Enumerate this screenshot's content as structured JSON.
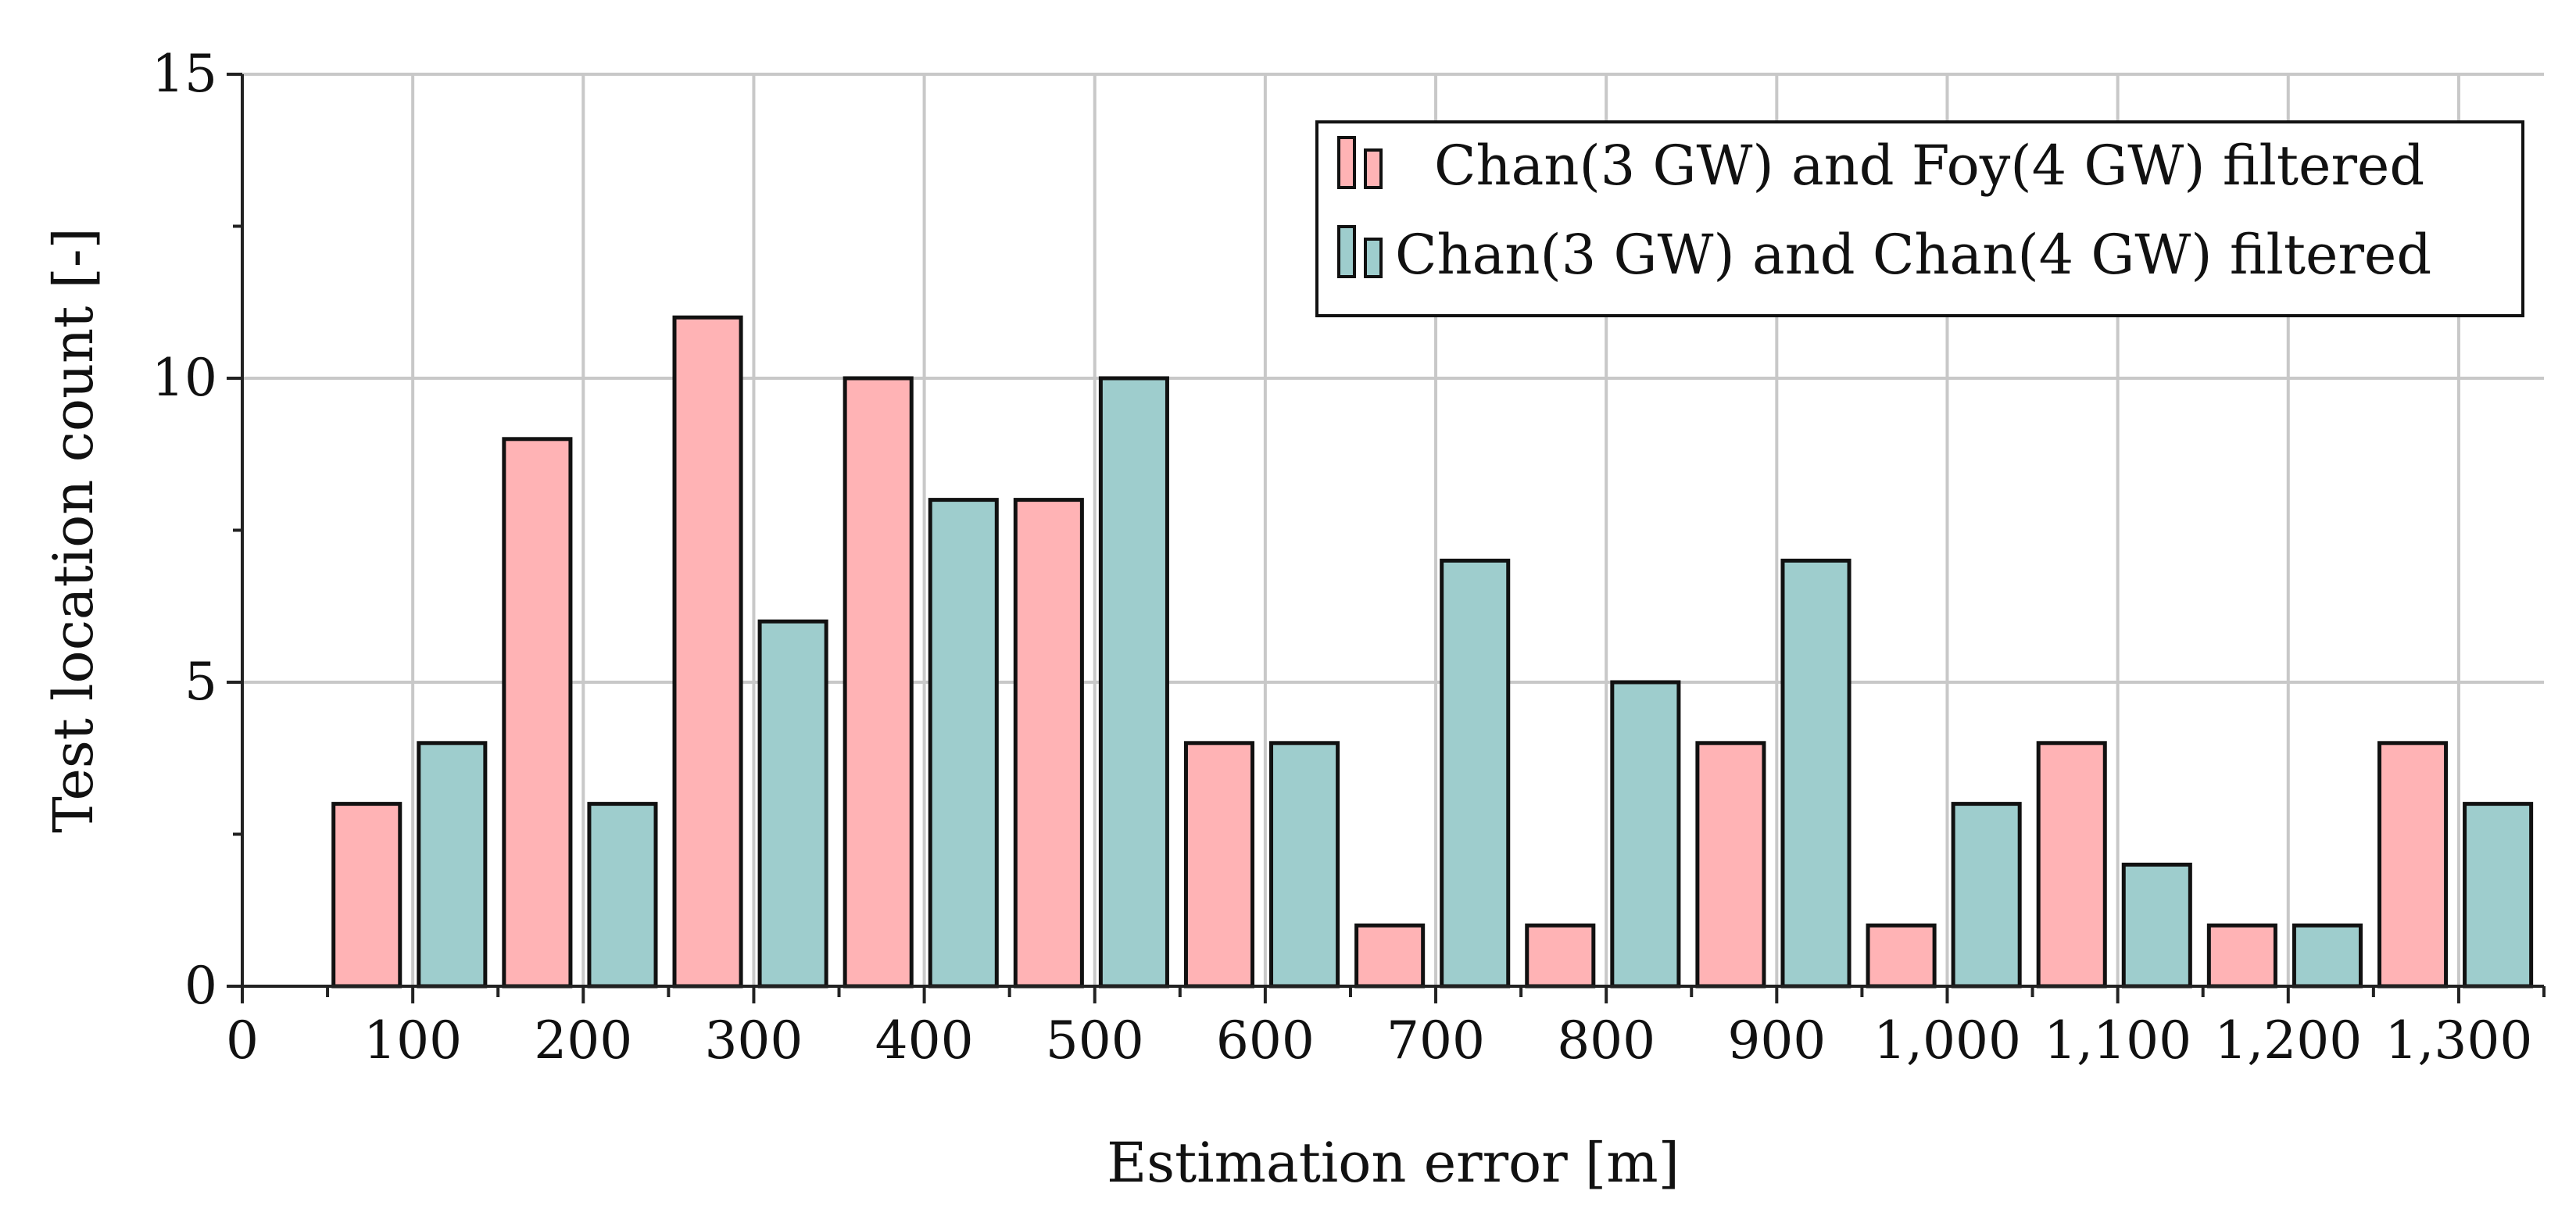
{
  "chart_data": {
    "type": "bar",
    "title": "",
    "xlabel": "Estimation error [m]",
    "ylabel": "Test location count [-]",
    "xlim": [
      0,
      1350
    ],
    "ylim": [
      0,
      15
    ],
    "x_ticks": [
      "0",
      "100",
      "200",
      "300",
      "400",
      "500",
      "600",
      "700",
      "800",
      "900",
      "1,000",
      "1,100",
      "1,200",
      "1,300"
    ],
    "y_ticks": [
      "0",
      "5",
      "10",
      "15"
    ],
    "grid": true,
    "legend_position": "top-right",
    "categories": [
      100,
      200,
      300,
      400,
      500,
      600,
      700,
      800,
      900,
      1000,
      1100,
      1200,
      1300
    ],
    "series": [
      {
        "name": "Chan(3 GW) and Foy(4 GW) filtered",
        "color": "#ffb3b5",
        "values": [
          3,
          9,
          11,
          10,
          8,
          4,
          1,
          1,
          4,
          1,
          4,
          1,
          4
        ]
      },
      {
        "name": "Chan(3 GW) and Chan(4 GW) filtered",
        "color": "#9ecdcd",
        "values": [
          4,
          3,
          6,
          8,
          10,
          4,
          7,
          5,
          7,
          3,
          2,
          1,
          3
        ]
      }
    ]
  }
}
